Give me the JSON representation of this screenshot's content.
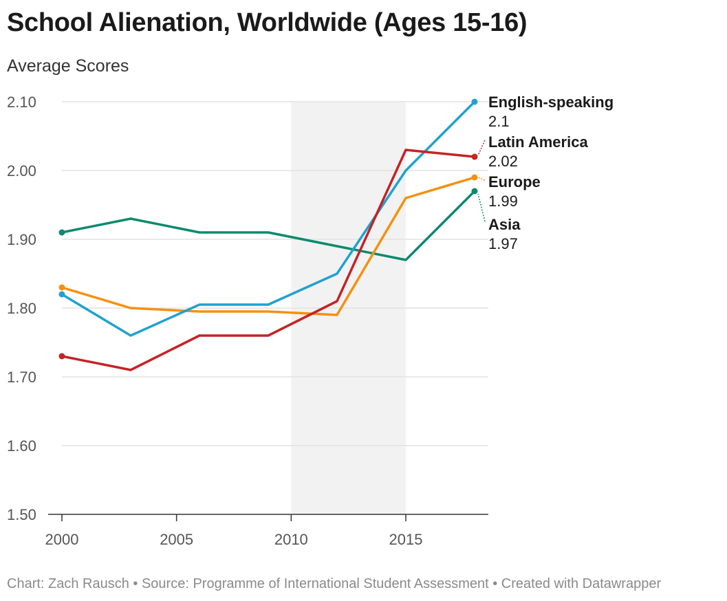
{
  "title": "School Alienation, Worldwide (Ages 15-16)",
  "subtitle": "Average Scores",
  "footer": "Chart: Zach Rausch • Source: Programme of International Student Assessment • Created with Datawrapper",
  "chart_data": {
    "type": "line",
    "title": "School Alienation, Worldwide (Ages 15-16)",
    "subtitle": "Average Scores",
    "xlabel": "",
    "ylabel": "",
    "xlim": [
      2000,
      2018
    ],
    "ylim": [
      1.5,
      2.1
    ],
    "x_ticks": [
      "2000",
      "2005",
      "2010",
      "2015"
    ],
    "y_ticks": [
      "2.10",
      "2.00",
      "1.90",
      "1.80",
      "1.70",
      "1.60",
      "1.50"
    ],
    "grid": true,
    "shaded_range": [
      2010,
      2015
    ],
    "x": [
      2000,
      2003,
      2006,
      2009,
      2012,
      2015,
      2018
    ],
    "series": [
      {
        "name": "English-speaking",
        "label": "2.1",
        "color": "#1fa2d0",
        "values": [
          1.82,
          1.76,
          1.805,
          1.805,
          1.85,
          2.0,
          2.1
        ]
      },
      {
        "name": "Latin America",
        "label": "2.02",
        "color": "#c42325",
        "values": [
          1.73,
          1.71,
          1.76,
          1.76,
          1.81,
          2.03,
          2.02
        ]
      },
      {
        "name": "Europe",
        "label": "1.99",
        "color": "#f5900f",
        "values": [
          1.83,
          1.8,
          1.795,
          1.795,
          1.79,
          1.96,
          1.99
        ]
      },
      {
        "name": "Asia",
        "label": "1.97",
        "color": "#0a8a6e",
        "values": [
          1.91,
          1.93,
          1.91,
          1.91,
          1.89,
          1.87,
          1.97
        ]
      }
    ]
  }
}
